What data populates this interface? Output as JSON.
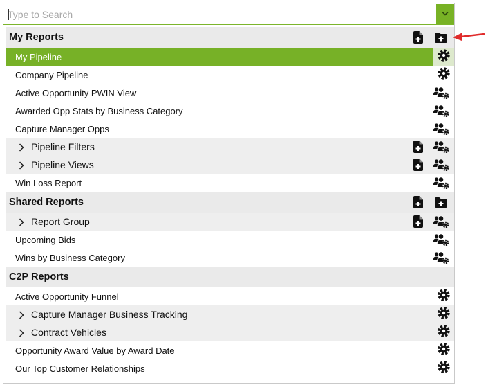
{
  "search": {
    "placeholder": "Type to Search",
    "value": ""
  },
  "colors": {
    "accent": "#78b225",
    "selected_row": "#77b127",
    "annotation_arrow": "#e02b2b"
  },
  "sections": [
    {
      "title": "My Reports",
      "header_icons": [
        "add-report-icon",
        "add-folder-icon"
      ],
      "items": [
        {
          "type": "item",
          "label": "My Pipeline",
          "icon": "gear-icon",
          "selected": true
        },
        {
          "type": "item",
          "label": "Company Pipeline",
          "icon": "gear-icon"
        },
        {
          "type": "item",
          "label": "Active Opportunity PWIN View",
          "icon": "shared-users-icon"
        },
        {
          "type": "item",
          "label": "Awarded Opp Stats by Business Category",
          "icon": "shared-users-icon"
        },
        {
          "type": "item",
          "label": "Capture Manager Opps",
          "icon": "shared-users-icon"
        },
        {
          "type": "folder",
          "label": "Pipeline Filters",
          "icons": [
            "add-report-icon",
            "shared-users-icon"
          ]
        },
        {
          "type": "folder",
          "label": "Pipeline Views",
          "icons": [
            "add-report-icon",
            "shared-users-icon"
          ]
        },
        {
          "type": "item",
          "label": "Win Loss Report",
          "icon": "shared-users-icon"
        }
      ]
    },
    {
      "title": "Shared Reports",
      "header_icons": [
        "add-report-icon",
        "add-folder-icon"
      ],
      "items": [
        {
          "type": "folder",
          "label": "Report Group",
          "icons": [
            "add-report-icon",
            "shared-users-icon"
          ]
        },
        {
          "type": "item",
          "label": "Upcoming Bids",
          "icon": "shared-users-icon"
        },
        {
          "type": "item",
          "label": "Wins by Business Category",
          "icon": "shared-users-icon"
        }
      ]
    },
    {
      "title": "C2P Reports",
      "header_icons": [],
      "items": [
        {
          "type": "item",
          "label": "Active Opportunity Funnel",
          "icon": "gear-icon"
        },
        {
          "type": "folder",
          "label": "Capture Manager Business Tracking",
          "icons": [
            "gear-icon"
          ]
        },
        {
          "type": "folder",
          "label": "Contract Vehicles",
          "icons": [
            "gear-icon"
          ]
        },
        {
          "type": "item",
          "label": "Opportunity Award Value by Award Date",
          "icon": "gear-icon"
        },
        {
          "type": "item",
          "label": "Our Top Customer Relationships",
          "icon": "gear-icon"
        }
      ]
    }
  ]
}
